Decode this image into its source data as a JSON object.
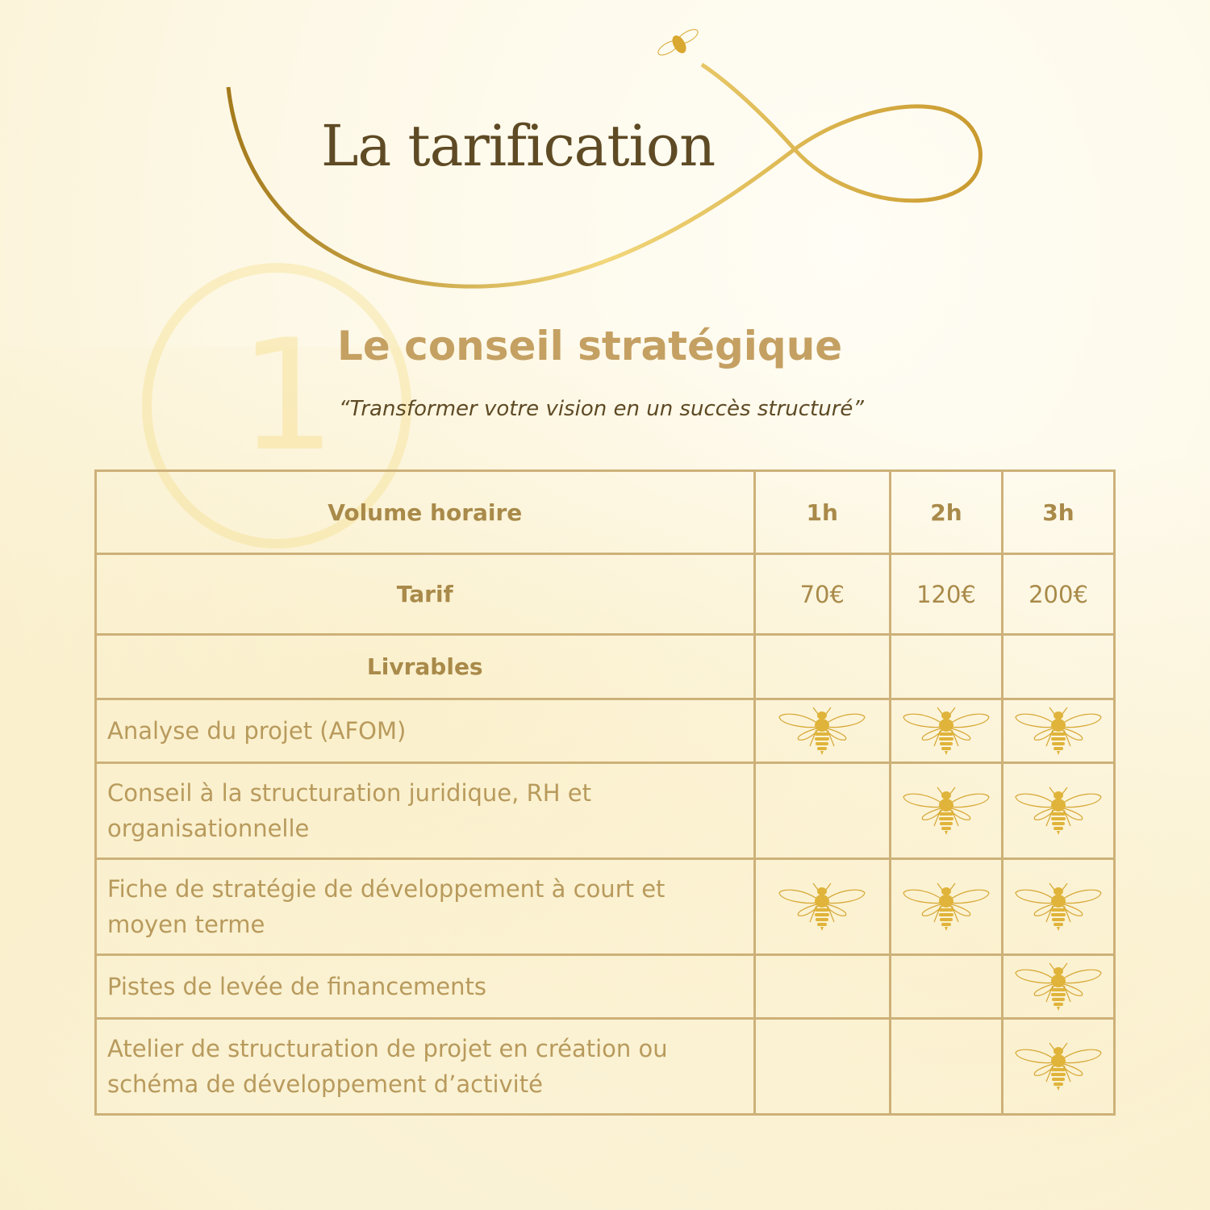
{
  "title": "La tarification",
  "section": {
    "number": "1",
    "heading": "Le conseil stratégique",
    "quote": "“Transformer votre vision en un succès structuré”"
  },
  "table": {
    "header": {
      "label": "Volume horaire",
      "cols": [
        "1h",
        "2h",
        "3h"
      ]
    },
    "tarif": {
      "label": "Tarif",
      "values": [
        "70€",
        "120€",
        "200€"
      ]
    },
    "livrables_label": "Livrables",
    "rows": [
      {
        "label": "Analyse du projet (AFOM)",
        "included": [
          true,
          true,
          true
        ]
      },
      {
        "label": "Conseil à la structuration juridique, RH et organisationnelle",
        "included": [
          false,
          true,
          true
        ]
      },
      {
        "label": "Fiche de stratégie de développement à court et moyen terme",
        "included": [
          true,
          true,
          true
        ]
      },
      {
        "label": "Pistes de levée de financements",
        "included": [
          false,
          false,
          true
        ]
      },
      {
        "label": "Atelier de structuration de projet en création ou schéma de développement d’activité",
        "included": [
          false,
          false,
          true
        ]
      }
    ],
    "included_icon": "bee-icon"
  },
  "colors": {
    "gold": "#c4a062",
    "border": "#cdb179",
    "title": "#5e4a24"
  }
}
